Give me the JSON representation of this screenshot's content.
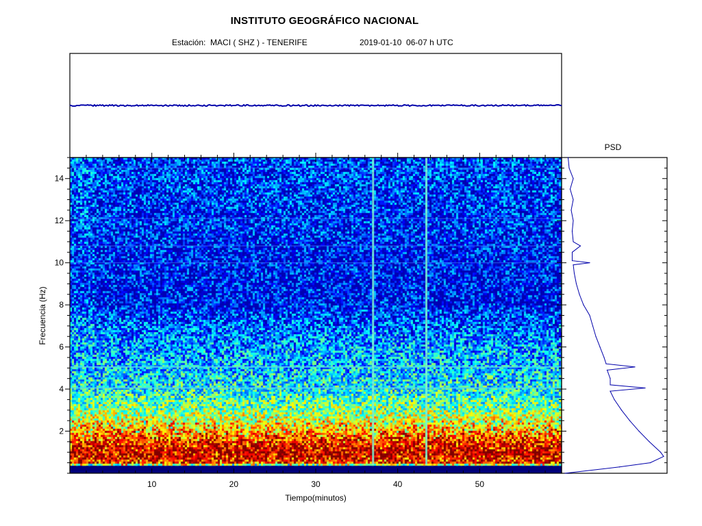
{
  "header": {
    "title": "INSTITUTO GEOGRÁFICO NACIONAL",
    "station": "Estación:  MACI ( SHZ ) - TENERIFE",
    "datetime": "2019-01-10  06-07 h UTC"
  },
  "psd_title": "PSD",
  "colors": {
    "trace": "#0000aa",
    "spectrogram_low": "#00007a",
    "spectrogram_mid": "#1a3fd6",
    "spectrogram_high": "#e8f02a",
    "psd_line": "#0000aa"
  },
  "chart_data": [
    {
      "type": "line",
      "title": "",
      "description_source": "seismic waveform trace",
      "x": [
        0,
        10,
        20,
        30,
        37,
        40,
        43.5,
        50,
        60
      ],
      "y": [
        0,
        0,
        0,
        0,
        0,
        0,
        0,
        0,
        0
      ],
      "xlim": [
        0,
        60
      ],
      "grid": false
    },
    {
      "type": "heatmap",
      "xlabel": "Tiempo(minutos)",
      "ylabel": "Frecuencia  (Hz)",
      "xlim": [
        0,
        60
      ],
      "ylim": [
        0,
        15
      ],
      "xticks": [
        10,
        20,
        30,
        40,
        50
      ],
      "yticks": [
        2,
        4,
        6,
        8,
        10,
        12,
        14
      ],
      "x_tick_labels": [
        "10",
        "20",
        "30",
        "40",
        "50"
      ],
      "y_tick_labels": [
        "2",
        "4",
        "6",
        "8",
        "10",
        "12",
        "14"
      ],
      "energy_profile": {
        "frequency_hz": [
          0,
          0.3,
          0.5,
          1,
          1.5,
          2,
          3,
          4,
          5,
          6,
          7,
          8,
          10,
          12,
          15
        ],
        "relative_energy": [
          0.05,
          0.2,
          0.85,
          0.95,
          0.85,
          0.7,
          0.5,
          0.38,
          0.32,
          0.28,
          0.22,
          0.12,
          0.12,
          0.15,
          0.18
        ]
      },
      "horizontal_lines_hz": [
        4.05,
        5.05,
        10.0,
        10.8,
        12.1,
        14.5
      ],
      "vertical_events_min": [
        37,
        43.5
      ],
      "grid": false
    },
    {
      "type": "line",
      "title": "PSD",
      "frequency_hz": [
        0,
        0.3,
        0.5,
        0.8,
        1.0,
        1.5,
        2.0,
        2.5,
        3.0,
        3.5,
        3.9,
        4.05,
        4.2,
        4.5,
        4.9,
        5.05,
        5.2,
        5.5,
        6.0,
        6.5,
        7.0,
        7.5,
        8.0,
        8.5,
        9.0,
        9.5,
        9.9,
        10.0,
        10.1,
        10.5,
        10.8,
        11.0,
        11.5,
        12.0,
        12.5,
        13.0,
        13.5,
        14.0,
        14.5,
        15.0
      ],
      "power": [
        0.02,
        0.55,
        0.85,
        0.98,
        0.95,
        0.84,
        0.74,
        0.65,
        0.57,
        0.5,
        0.46,
        0.8,
        0.46,
        0.46,
        0.43,
        0.7,
        0.42,
        0.4,
        0.36,
        0.32,
        0.29,
        0.26,
        0.2,
        0.16,
        0.13,
        0.11,
        0.1,
        0.26,
        0.09,
        0.09,
        0.17,
        0.1,
        0.09,
        0.1,
        0.08,
        0.1,
        0.07,
        0.1,
        0.06,
        0.05
      ],
      "ylim": [
        0,
        15
      ],
      "grid": false
    }
  ]
}
